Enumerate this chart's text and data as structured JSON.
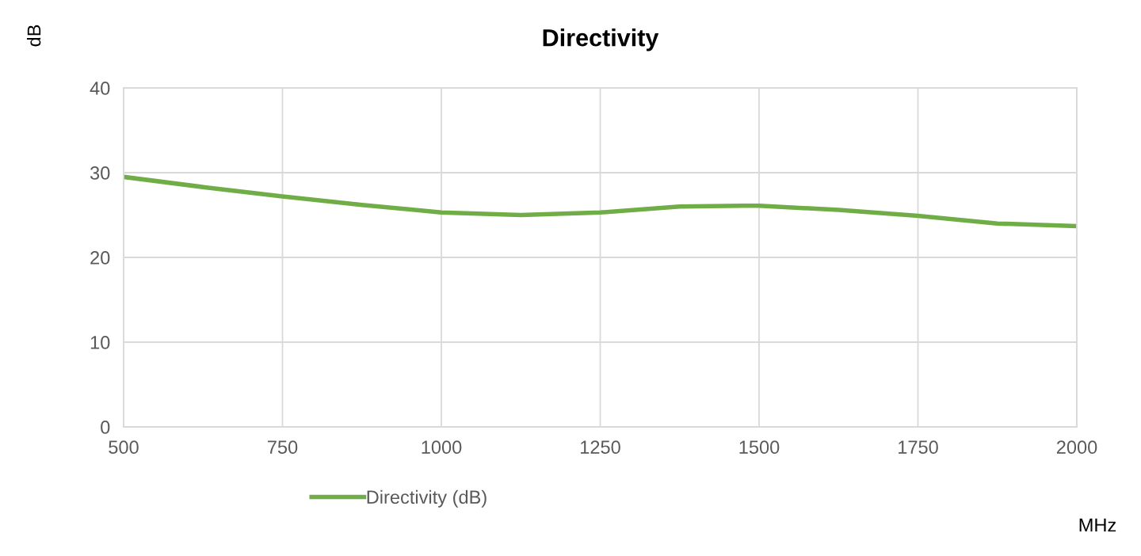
{
  "chart_data": {
    "type": "line",
    "title": "Directivity",
    "xlabel": "MHz",
    "ylabel": "dB",
    "x": [
      500,
      625,
      750,
      875,
      1000,
      1125,
      1250,
      1375,
      1475,
      1500,
      1625,
      1750,
      1875,
      2000
    ],
    "series": [
      {
        "name": "Directivity (dB)",
        "color": "#70ad47",
        "values": [
          29.5,
          28.3,
          27.2,
          26.2,
          25.3,
          25.0,
          25.3,
          26.0,
          26.1,
          26.1,
          25.6,
          24.9,
          24.0,
          23.7
        ]
      }
    ],
    "xlim": [
      500,
      2000
    ],
    "xticks": [
      500,
      750,
      1000,
      1250,
      1500,
      1750,
      2000
    ],
    "ylim": [
      0,
      40
    ],
    "yticks": [
      0,
      10,
      20,
      30,
      40
    ],
    "grid": true,
    "legend": "bottom",
    "marker": "none",
    "line_style": "solid"
  }
}
